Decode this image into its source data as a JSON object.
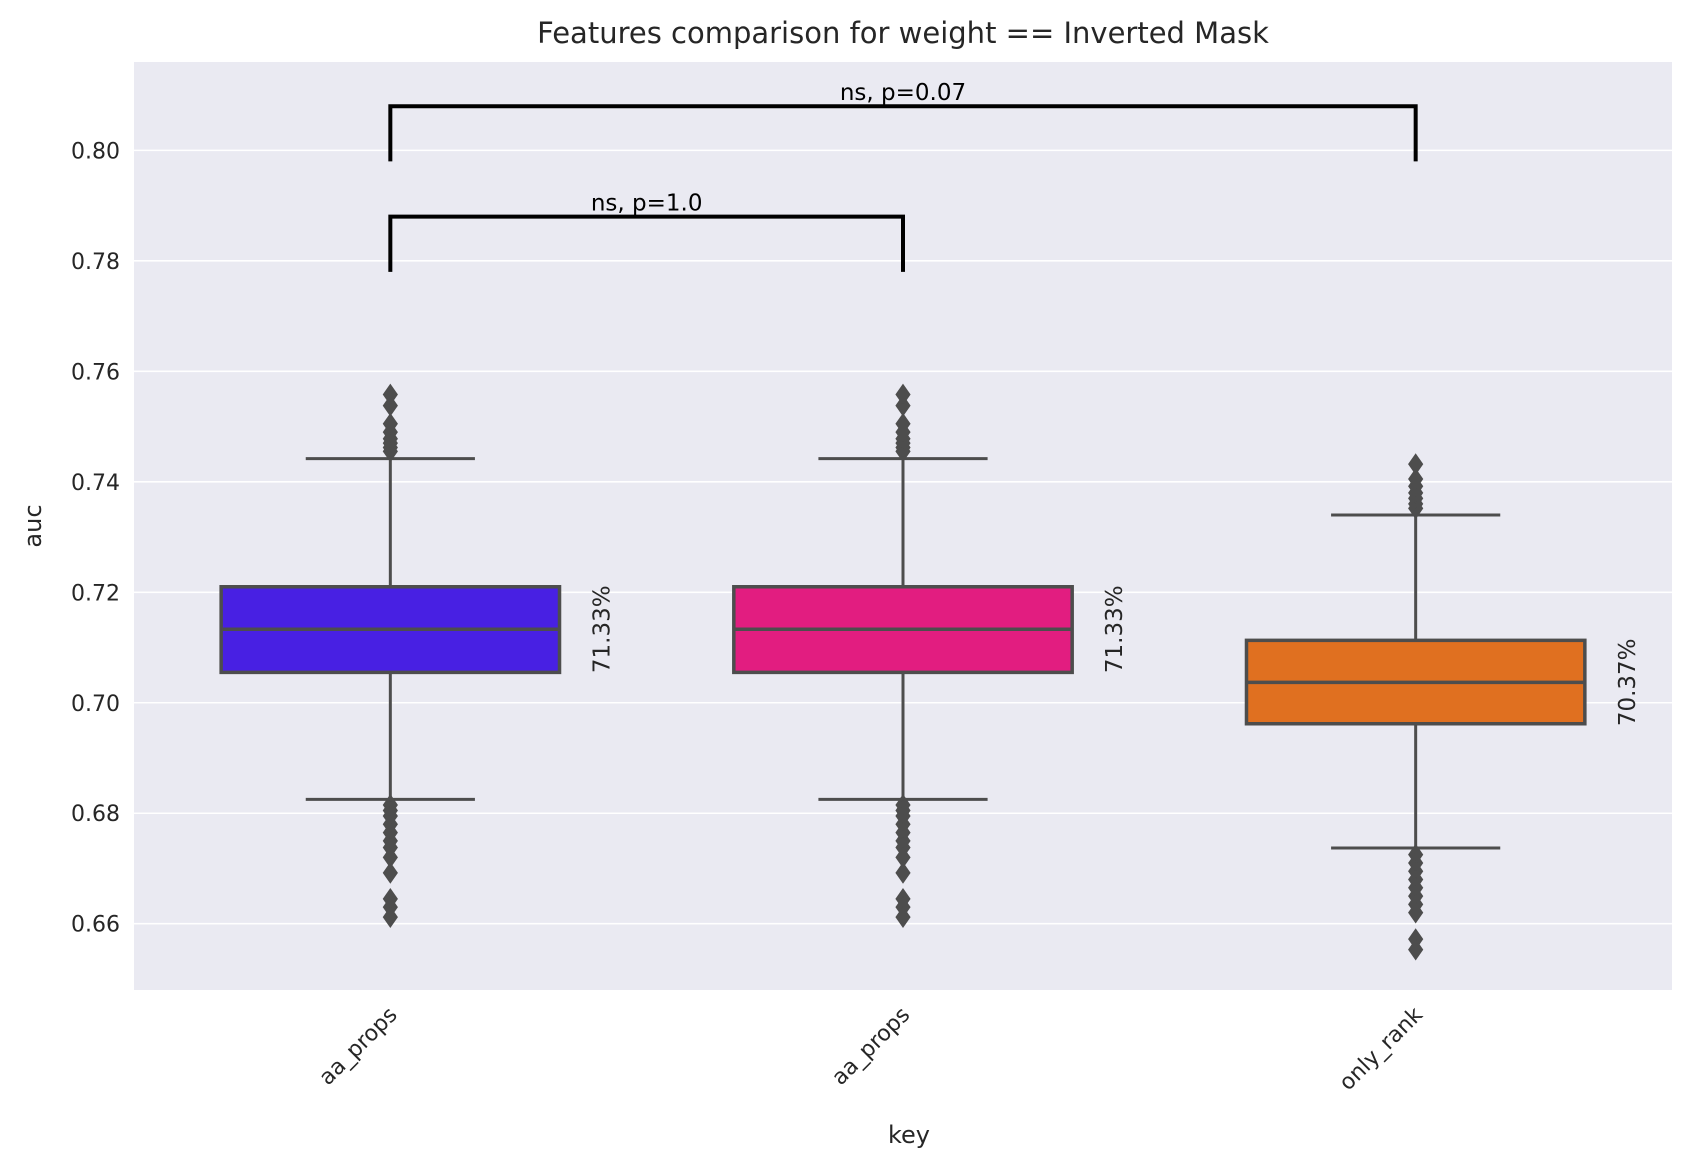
{
  "chart_data": {
    "type": "box",
    "title": "Features comparison for weight == Inverted Mask",
    "xlabel": "key",
    "ylabel": "auc",
    "ylim": [
      0.648,
      0.816
    ],
    "yticks": [
      "0.66",
      "0.68",
      "0.70",
      "0.72",
      "0.74",
      "0.76",
      "0.78",
      "0.80"
    ],
    "grid": true,
    "background": "#eaeaf2",
    "edge_color": "#4d4d4d",
    "categories": [
      "aa_props",
      "aa_props",
      "only_rank"
    ],
    "boxes": [
      {
        "label": "aa_props",
        "color": "#4820e3",
        "q1": 0.7055,
        "median": 0.7133,
        "q3": 0.721,
        "whisker_low": 0.6825,
        "whisker_high": 0.7442,
        "outliers": [
          0.7455,
          0.7462,
          0.747,
          0.7478,
          0.749,
          0.7505,
          0.7538,
          0.7558,
          0.6815,
          0.6805,
          0.6795,
          0.678,
          0.6765,
          0.675,
          0.6738,
          0.672,
          0.6692,
          0.6645,
          0.663,
          0.6612
        ],
        "annotation": "71.33%"
      },
      {
        "label": "aa_props",
        "color": "#e21d80",
        "q1": 0.7055,
        "median": 0.7133,
        "q3": 0.721,
        "whisker_low": 0.6825,
        "whisker_high": 0.7442,
        "outliers": [
          0.7455,
          0.7462,
          0.747,
          0.7478,
          0.749,
          0.7505,
          0.7538,
          0.7558,
          0.6815,
          0.6805,
          0.6795,
          0.678,
          0.6765,
          0.675,
          0.6738,
          0.672,
          0.6692,
          0.6645,
          0.663,
          0.6612
        ],
        "annotation": "71.33%"
      },
      {
        "label": "only_rank",
        "color": "#e07020",
        "q1": 0.6962,
        "median": 0.7037,
        "q3": 0.7113,
        "whisker_low": 0.6737,
        "whisker_high": 0.734,
        "outliers": [
          0.7352,
          0.736,
          0.737,
          0.738,
          0.7392,
          0.7405,
          0.7432,
          0.6725,
          0.671,
          0.6695,
          0.668,
          0.6665,
          0.665,
          0.6635,
          0.662,
          0.6572,
          0.6553
        ],
        "annotation": "70.37%"
      }
    ],
    "significance": [
      {
        "from": 0,
        "to": 1,
        "bracket_y": 0.788,
        "leg_y": 0.778,
        "text": "ns, p=1.0"
      },
      {
        "from": 0,
        "to": 2,
        "bracket_y": 0.808,
        "leg_y": 0.798,
        "text": "ns, p=0.07"
      }
    ]
  }
}
